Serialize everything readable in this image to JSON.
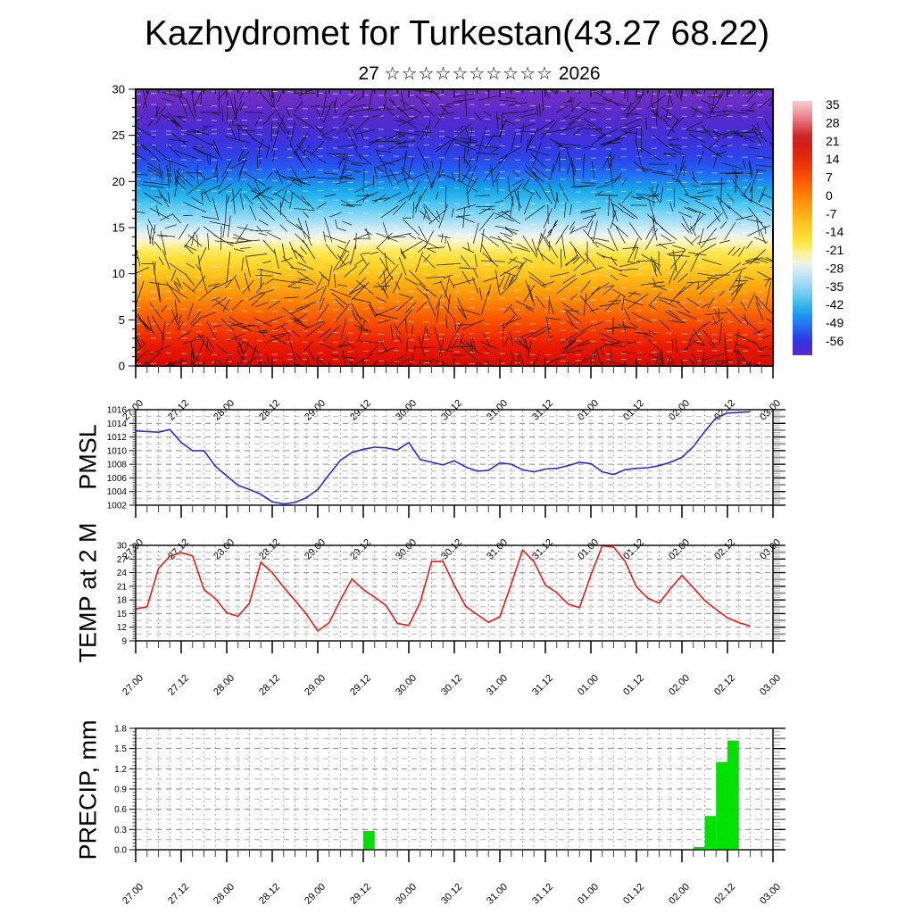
{
  "title": "Kazhydromet for Turkestan(43.27 68.22)",
  "subtitle": {
    "day": "27",
    "stars": "☆☆☆☆☆☆☆☆☆☆",
    "year": "2026"
  },
  "time_axis": {
    "start_label": "27.00",
    "end_label": "03.00",
    "tick_labels": [
      "27.00",
      "27.12",
      "28.00",
      "28.12",
      "29.00",
      "29.12",
      "30.00",
      "30.12",
      "31.00",
      "31.12",
      "01.00",
      "01.12",
      "02.00",
      "02.12",
      "03.00"
    ],
    "major_step_hours": 12,
    "minor_step_hours": 3,
    "span_hours": 168
  },
  "chart_data": [
    {
      "id": "upper_air",
      "type": "heatmap",
      "description": "time-height temperature shading overlaid with black wind-streak segments and faint white dashed contours",
      "ylim": [
        0,
        30
      ],
      "yticks": [
        0,
        5,
        10,
        15,
        20,
        25,
        30
      ],
      "gradient_stops": [
        [
          0.0,
          "#7232c8"
        ],
        [
          0.04,
          "#6b2ec6"
        ],
        [
          0.09,
          "#5a2ac8"
        ],
        [
          0.14,
          "#4c2dd2"
        ],
        [
          0.19,
          "#3d33de"
        ],
        [
          0.24,
          "#2f41e8"
        ],
        [
          0.28,
          "#2458ee"
        ],
        [
          0.32,
          "#1f7af0"
        ],
        [
          0.355,
          "#16a0e8"
        ],
        [
          0.39,
          "#2cb6ee"
        ],
        [
          0.43,
          "#63ccf2"
        ],
        [
          0.47,
          "#9cdcf4"
        ],
        [
          0.5,
          "#c6e8f6"
        ],
        [
          0.525,
          "#e9f2ef"
        ],
        [
          0.55,
          "#fbf6c5"
        ],
        [
          0.575,
          "#fdec7c"
        ],
        [
          0.6,
          "#ffe33e"
        ],
        [
          0.64,
          "#ffd22a"
        ],
        [
          0.68,
          "#ffbc18"
        ],
        [
          0.72,
          "#ffa30d"
        ],
        [
          0.76,
          "#ff8806"
        ],
        [
          0.8,
          "#fb6b01"
        ],
        [
          0.84,
          "#f75000"
        ],
        [
          0.88,
          "#f23500"
        ],
        [
          0.92,
          "#ea1e00"
        ],
        [
          0.96,
          "#e11300"
        ],
        [
          1.0,
          "#d30d00"
        ]
      ],
      "colorbar": {
        "ticks": [
          35,
          28,
          21,
          14,
          7,
          0,
          -7,
          -14,
          -21,
          -28,
          -35,
          -42,
          -49,
          -56
        ],
        "stops": [
          [
            0.0,
            "#f7c9d0"
          ],
          [
            0.03,
            "#f2abb2"
          ],
          [
            0.07,
            "#e87c83"
          ],
          [
            0.11,
            "#da474d"
          ],
          [
            0.14,
            "#c92427"
          ],
          [
            0.18,
            "#d31f15"
          ],
          [
            0.22,
            "#e02a0c"
          ],
          [
            0.27,
            "#ef4004"
          ],
          [
            0.32,
            "#fb5e01"
          ],
          [
            0.37,
            "#ff8005"
          ],
          [
            0.42,
            "#ffa00d"
          ],
          [
            0.47,
            "#ffbe1c"
          ],
          [
            0.52,
            "#ffd62d"
          ],
          [
            0.56,
            "#ffe748"
          ],
          [
            0.6,
            "#fdf29b"
          ],
          [
            0.635,
            "#edf2e4"
          ],
          [
            0.67,
            "#cfe9f4"
          ],
          [
            0.71,
            "#a8dcf2"
          ],
          [
            0.76,
            "#70ccf0"
          ],
          [
            0.8,
            "#38b6ec"
          ],
          [
            0.84,
            "#1f98ee"
          ],
          [
            0.88,
            "#2472f2"
          ],
          [
            0.92,
            "#2a4ae8"
          ],
          [
            0.95,
            "#3532dc"
          ],
          [
            0.98,
            "#4b28d0"
          ],
          [
            1.0,
            "#6130c8"
          ]
        ]
      }
    },
    {
      "id": "pmsl",
      "type": "line",
      "ylabel": "PMSL",
      "ylim": [
        1002,
        1016
      ],
      "ytick_step": 2,
      "color": "#2a2ecc",
      "start_hour": 0,
      "step_hours": 3,
      "values": [
        1012.9,
        1012.8,
        1012.7,
        1013.1,
        1011.2,
        1010.0,
        1010.0,
        1007.7,
        1006.3,
        1004.9,
        1004.3,
        1003.6,
        1002.5,
        1002.2,
        1002.4,
        1003.1,
        1004.3,
        1006.5,
        1008.6,
        1009.7,
        1010.2,
        1010.5,
        1010.4,
        1010.1,
        1011.2,
        1008.7,
        1008.3,
        1007.9,
        1008.5,
        1007.6,
        1007.0,
        1007.1,
        1008.2,
        1008.0,
        1007.2,
        1006.9,
        1007.3,
        1007.4,
        1007.8,
        1008.3,
        1008.1,
        1006.9,
        1006.5,
        1007.2,
        1007.4,
        1007.5,
        1007.8,
        1008.3,
        1009.0,
        1010.6,
        1012.8,
        1014.8,
        1015.5,
        1015.6,
        1015.7
      ]
    },
    {
      "id": "temp2m",
      "type": "line",
      "ylabel": "TEMP at 2 M",
      "ylim": [
        9,
        30
      ],
      "ytick_step": 3,
      "color": "#e21d18",
      "start_hour": 0,
      "step_hours": 3,
      "values": [
        16.0,
        16.5,
        24.9,
        27.6,
        28.4,
        27.7,
        20.3,
        18.3,
        15.2,
        14.4,
        17.3,
        26.3,
        24.0,
        20.8,
        17.9,
        14.9,
        11.2,
        13.0,
        18.0,
        22.6,
        20.3,
        18.6,
        16.8,
        12.8,
        12.4,
        17.5,
        26.4,
        26.5,
        21.2,
        16.6,
        14.8,
        13.1,
        14.3,
        21.5,
        29.0,
        26.4,
        21.3,
        19.6,
        17.1,
        16.3,
        23.5,
        29.9,
        29.6,
        26.5,
        20.9,
        18.4,
        17.3,
        20.5,
        23.4,
        20.7,
        17.9,
        15.9,
        14.1,
        13.0,
        12.3
      ]
    },
    {
      "id": "precip",
      "type": "bar",
      "ylabel": "PRECIP, mm",
      "ylim": [
        0,
        1.8
      ],
      "ytick_step": 0.3,
      "color": "#00e100",
      "bars": [
        {
          "start_hour": 60,
          "end_hour": 63,
          "value": 0.28
        },
        {
          "start_hour": 147,
          "end_hour": 150,
          "value": 0.04
        },
        {
          "start_hour": 150,
          "end_hour": 153,
          "value": 0.5
        },
        {
          "start_hour": 153,
          "end_hour": 156,
          "value": 1.3
        },
        {
          "start_hour": 156,
          "end_hour": 159,
          "value": 1.62
        }
      ]
    }
  ]
}
